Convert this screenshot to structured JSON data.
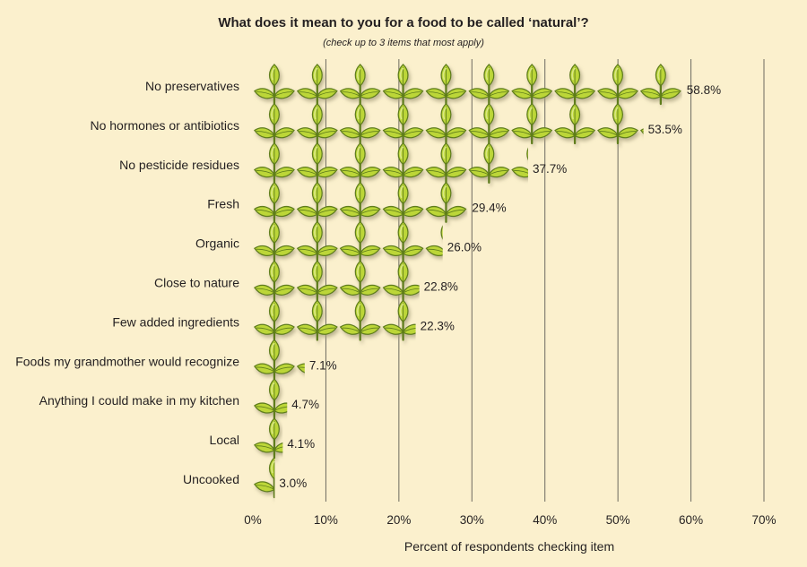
{
  "colors": {
    "background": "#fbf0cd",
    "leaf_fill": "#bcd639",
    "leaf_highlight": "#d9e884",
    "leaf_stroke": "#5e7d1a",
    "shadow": "#c9c1a0",
    "grid": "#6d6a60"
  },
  "icon": "sprout-icon",
  "chart_data": {
    "type": "bar",
    "orientation": "horizontal",
    "title": "What does it mean to you for a food to be called ‘natural’?",
    "subtitle": "(check up to 3 items that most apply)",
    "xlabel": "Percent of respondents checking item",
    "xlim": [
      0,
      70
    ],
    "xticks": [
      0,
      10,
      20,
      30,
      40,
      50,
      60,
      70
    ],
    "xtick_labels": [
      "0%",
      "10%",
      "20%",
      "30%",
      "40%",
      "50%",
      "60%",
      "70%"
    ],
    "grid": true,
    "unit_per_icon": 5.88,
    "categories": [
      "No preservatives",
      "No hormones or antibiotics",
      "No pesticide residues",
      "Fresh",
      "Organic",
      "Close to nature",
      "Few added ingredients",
      "Foods my grandmother would recognize",
      "Anything I could make in my kitchen",
      "Local",
      "Uncooked"
    ],
    "values": [
      58.8,
      53.5,
      37.7,
      29.4,
      26.0,
      22.8,
      22.3,
      7.1,
      4.7,
      4.1,
      3.0
    ],
    "value_labels": [
      "58.8%",
      "53.5%",
      "37.7%",
      "29.4%",
      "26.0%",
      "22.8%",
      "22.3%",
      "7.1%",
      "4.7%",
      "4.1%",
      "3.0%"
    ]
  }
}
